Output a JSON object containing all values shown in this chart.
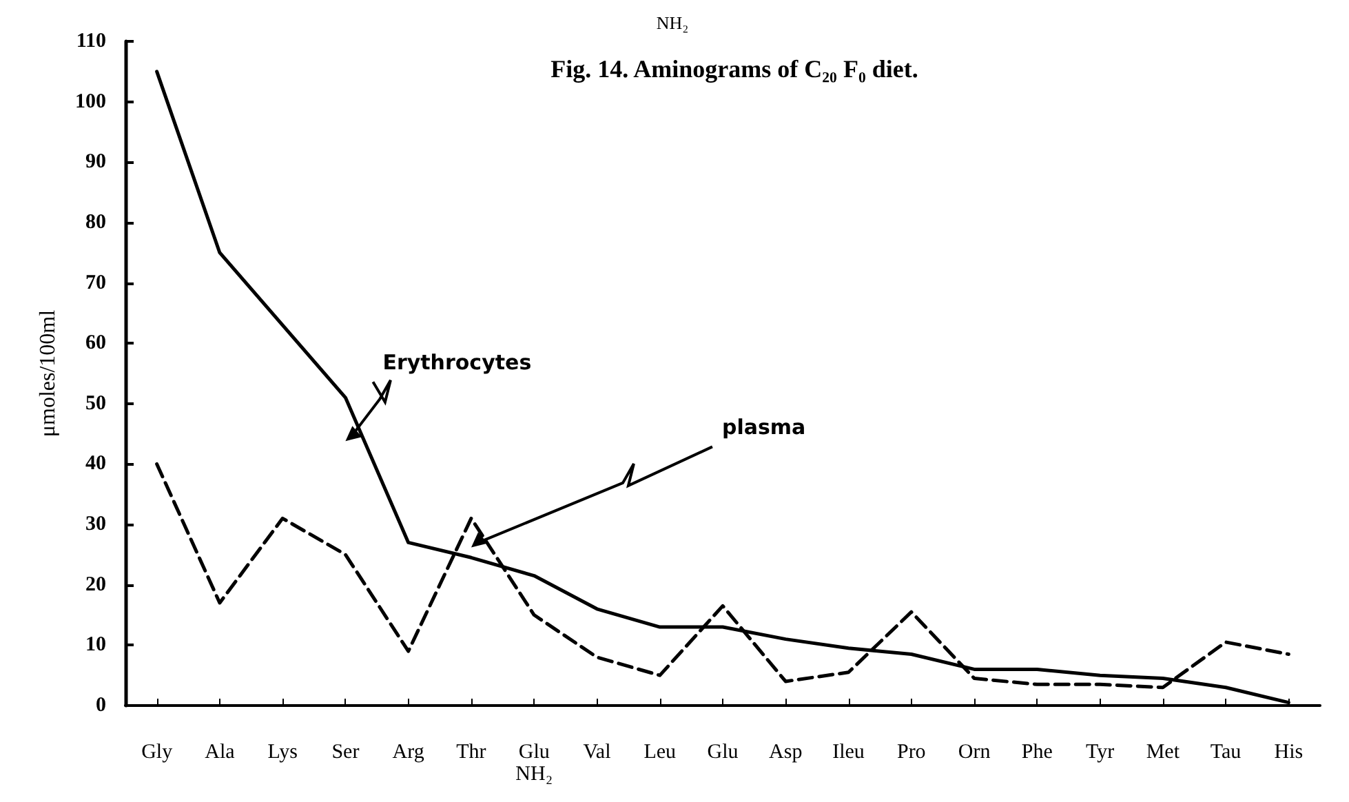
{
  "chart_data": {
    "type": "line",
    "title": "Fig. 14. Aminograms of C₂₀ F₀ diet.",
    "annotations": [
      "NH₂"
    ],
    "ylabel": "μmoles/100ml",
    "categories": [
      "Gly",
      "Ala",
      "Lys",
      "Ser",
      "Arg",
      "Thr",
      "Glu\nNH₂",
      "Val",
      "Leu",
      "Glu",
      "Asp",
      "Ileu",
      "Pro",
      "Orn",
      "Phe",
      "Tyr",
      "Met",
      "Tau",
      "His"
    ],
    "series": [
      {
        "name": "Erythrocytes",
        "color": "#000000",
        "line_style": "solid",
        "values": [
          105,
          75,
          63,
          51,
          27,
          24.5,
          21.5,
          16,
          13,
          13,
          11,
          9.5,
          8.5,
          6,
          6,
          5,
          4.5,
          3,
          0.5
        ]
      },
      {
        "name": "plasma",
        "color": "#000000",
        "line_style": "dashed",
        "values": [
          40,
          17,
          31,
          25,
          9,
          31,
          15,
          8,
          5,
          16.5,
          4,
          5.5,
          15.5,
          4.5,
          3.5,
          3.5,
          3,
          10.5,
          8.5
        ]
      }
    ],
    "ylim": [
      0,
      110
    ],
    "yticks": [
      0,
      10,
      20,
      30,
      40,
      50,
      60,
      70,
      80,
      90,
      100,
      110
    ],
    "grid": false,
    "legend": false,
    "marker": "none"
  }
}
